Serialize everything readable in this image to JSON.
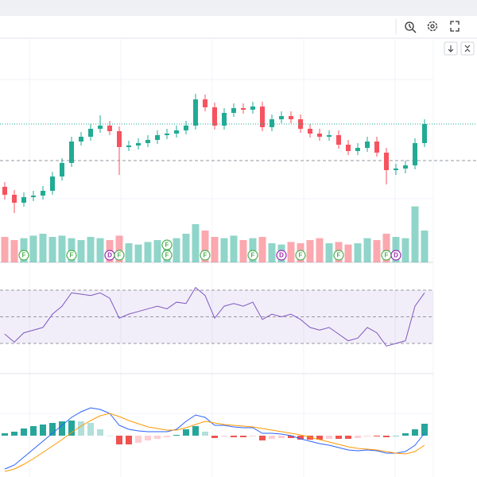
{
  "chart_data": {
    "type": "candlestick",
    "up_color": "#22ab94",
    "down_color": "#f7525f",
    "ylim": [
      0,
      282
    ],
    "open": [
      95,
      85,
      75,
      82,
      84,
      90,
      108,
      125,
      152,
      158,
      168,
      172,
      165,
      145,
      147,
      150,
      154,
      160,
      162,
      166,
      172,
      205,
      195,
      172,
      188,
      194,
      192,
      196,
      170,
      180,
      184,
      180,
      168,
      162,
      158,
      160,
      148,
      140,
      144,
      152,
      138,
      116,
      118,
      122,
      150
    ],
    "high": [
      101,
      91,
      88,
      90,
      96,
      114,
      131,
      158,
      164,
      174,
      185,
      178,
      171,
      153,
      156,
      160,
      166,
      168,
      172,
      178,
      212,
      211,
      201,
      194,
      200,
      200,
      202,
      202,
      186,
      190,
      190,
      186,
      174,
      168,
      166,
      166,
      154,
      150,
      158,
      158,
      144,
      124,
      128,
      156,
      180
    ],
    "low": [
      79,
      62,
      70,
      77,
      79,
      85,
      103,
      120,
      147,
      153,
      163,
      160,
      110,
      140,
      142,
      145,
      149,
      155,
      157,
      161,
      167,
      190,
      167,
      167,
      183,
      187,
      187,
      165,
      165,
      175,
      175,
      163,
      157,
      153,
      153,
      143,
      135,
      135,
      139,
      133,
      98,
      110,
      112,
      117,
      145
    ],
    "close": [
      85,
      75,
      82,
      84,
      90,
      108,
      125,
      152,
      158,
      168,
      172,
      165,
      145,
      147,
      150,
      154,
      160,
      162,
      166,
      172,
      205,
      195,
      172,
      188,
      194,
      192,
      196,
      170,
      180,
      184,
      180,
      168,
      162,
      158,
      160,
      148,
      140,
      144,
      152,
      138,
      116,
      118,
      122,
      150,
      174
    ],
    "volume": {
      "ylim": [
        0,
        100
      ],
      "values": [
        40,
        35,
        38,
        42,
        45,
        40,
        42,
        38,
        35,
        40,
        38,
        35,
        42,
        30,
        28,
        32,
        35,
        30,
        38,
        45,
        60,
        50,
        40,
        38,
        42,
        35,
        38,
        40,
        30,
        28,
        32,
        30,
        35,
        38,
        30,
        32,
        28,
        30,
        38,
        35,
        45,
        40,
        38,
        88,
        50
      ]
    },
    "markers": [
      null,
      null,
      [
        "F"
      ],
      null,
      null,
      null,
      null,
      [
        "F"
      ],
      null,
      null,
      null,
      [
        "D"
      ],
      [
        "F"
      ],
      null,
      null,
      null,
      null,
      [
        "F",
        "F"
      ],
      null,
      null,
      null,
      [
        "F"
      ],
      null,
      null,
      null,
      null,
      [
        "F"
      ],
      null,
      null,
      [
        "D"
      ],
      null,
      [
        "F"
      ],
      null,
      null,
      null,
      [
        "F"
      ],
      null,
      null,
      null,
      null,
      [
        "F"
      ],
      [
        "D"
      ],
      null,
      null,
      null
    ],
    "rsi": {
      "ylim": [
        0,
        100
      ],
      "levels": [
        30,
        50,
        70
      ],
      "color": "#7e57c2",
      "values": [
        37,
        31,
        38,
        40,
        42,
        52,
        58,
        68,
        67,
        66,
        68,
        64,
        49,
        52,
        54,
        56,
        58,
        56,
        61,
        60,
        72,
        66,
        49,
        58,
        60,
        58,
        61,
        48,
        52,
        50,
        52,
        48,
        42,
        40,
        42,
        37,
        32,
        34,
        42,
        38,
        28,
        30,
        32,
        58,
        68
      ]
    },
    "macd": {
      "ylim": [
        -4.4,
        7.8
      ],
      "macd_color": "#2962ff",
      "signal_color": "#ff9800",
      "macd": [
        -4.2,
        -3.7,
        -2.7,
        -1.7,
        -0.7,
        0.3,
        1.3,
        2.3,
        3.0,
        3.5,
        3.3,
        2.8,
        1.3,
        0.8,
        0.6,
        0.5,
        0.5,
        0.5,
        0.8,
        1.8,
        2.6,
        2.3,
        1.3,
        1.3,
        1.1,
        1.0,
        1.0,
        0.3,
        0.3,
        0.2,
        0,
        -0.4,
        -0.7,
        -1.0,
        -1.2,
        -1.5,
        -1.8,
        -1.9,
        -1.8,
        -1.9,
        -2.2,
        -2.2,
        -2.0,
        -1.2,
        0.3
      ],
      "signal": [
        -4.5,
        -4.2,
        -3.6,
        -2.9,
        -2.1,
        -1.3,
        -0.5,
        0.4,
        1.2,
        1.9,
        2.5,
        2.8,
        2.4,
        1.9,
        1.5,
        1.1,
        0.9,
        0.7,
        0.7,
        1.0,
        1.4,
        1.8,
        1.6,
        1.4,
        1.3,
        1.2,
        1.1,
        0.9,
        0.7,
        0.5,
        0.3,
        0.1,
        -0.2,
        -0.5,
        -0.8,
        -1.1,
        -1.4,
        -1.6,
        -1.7,
        -1.8,
        -2.0,
        -2.2,
        -2.3,
        -2.0,
        -1.2
      ],
      "histogram": [
        0.3,
        0.5,
        0.9,
        1.2,
        1.4,
        1.6,
        1.8,
        1.9,
        1.8,
        1.6,
        0.8,
        0,
        -1.1,
        -1.1,
        -0.9,
        -0.6,
        -0.4,
        -0.2,
        0.1,
        0.8,
        1.2,
        0.5,
        -0.3,
        -0.1,
        -0.2,
        -0.2,
        -0.1,
        -0.6,
        -0.4,
        -0.3,
        -0.3,
        -0.5,
        -0.5,
        -0.5,
        -0.4,
        -0.4,
        -0.4,
        -0.3,
        -0.1,
        -0.1,
        -0.2,
        0,
        0.3,
        0.8,
        1.5
      ]
    }
  }
}
